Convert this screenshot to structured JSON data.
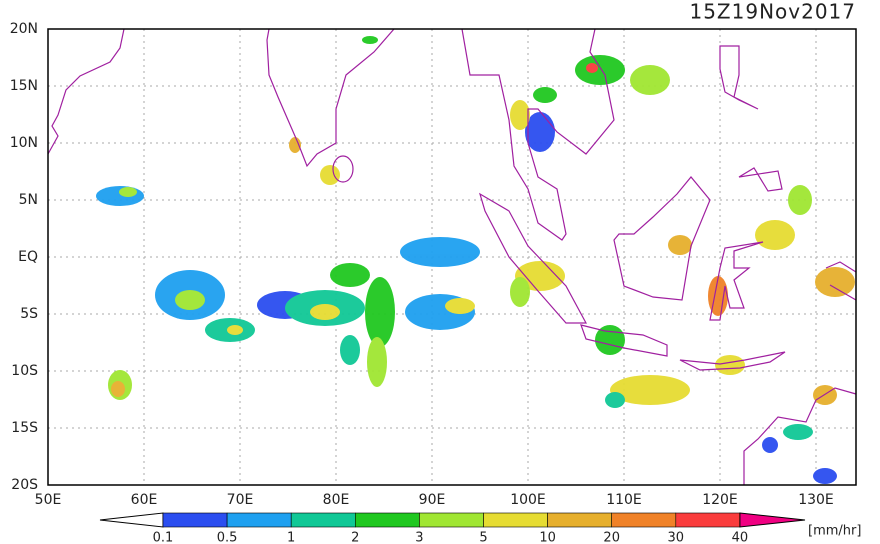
{
  "header": {
    "title": "15Z19Nov2017"
  },
  "map": {
    "lon_labels": [
      "50E",
      "60E",
      "70E",
      "80E",
      "90E",
      "100E",
      "110E",
      "120E",
      "130E"
    ],
    "lat_labels": [
      "20N",
      "15N",
      "10N",
      "5N",
      "EQ",
      "5S",
      "10S",
      "15S",
      "20S"
    ]
  },
  "colorbar": {
    "labels": [
      "0.1",
      "0.5",
      "1",
      "2",
      "3",
      "5",
      "10",
      "20",
      "30",
      "40"
    ],
    "under_color": "#ffffff",
    "colors": [
      "#2b4ef0",
      "#1ea0f0",
      "#10c896",
      "#20c820",
      "#a0e632",
      "#e6dc32",
      "#e6af2d",
      "#f08228",
      "#fa3c3c"
    ],
    "over_color": "#f00082",
    "unit": "[mm/hr]"
  }
}
